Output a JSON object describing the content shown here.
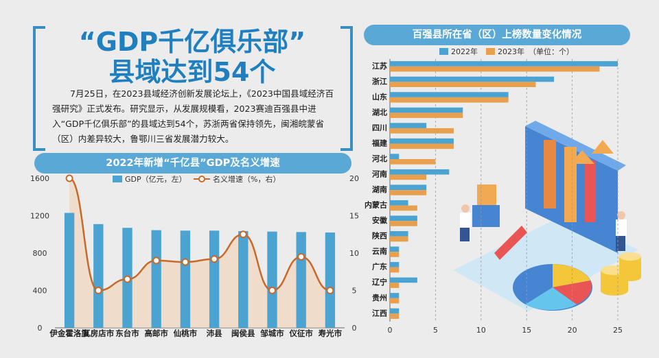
{
  "article": {
    "headline_line1": "“GDP千亿俱乐部”",
    "headline_line2": "县域达到54个",
    "lead": "7月25日，在2023县域经济创新发展论坛上，《2023中国县域经济百强研究》正式发布。研究显示，从发展规模看，2023赛迪百强县中进入“GDP千亿俱乐部”的县域达到54个，苏浙两省保持领先，闽湘皖蒙省（区）内差异较大，鲁鄂川三省发展潜力较大。"
  },
  "colors": {
    "accent": "#3a8fc2",
    "bar_gdp": "#4ba3d1",
    "line_growth": "#c8692a",
    "bar_2022": "#4ba3d1",
    "bar_2023": "#e8a04e"
  },
  "chart_data": [
    {
      "type": "bar",
      "title": "2022年新增“千亿县”GDP及名义增速",
      "categories": [
        "伊金霍洛旗",
        "瓦房店市",
        "东台市",
        "高邮市",
        "仙桃市",
        "沛县",
        "闽侯县",
        "邹城市",
        "仪征市",
        "寿光市"
      ],
      "series": [
        {
          "name": "GDP（亿元，左）",
          "type": "bar",
          "axis": "left",
          "values": [
            1230,
            1110,
            1070,
            1045,
            1040,
            1040,
            1035,
            1030,
            1025,
            1020
          ]
        },
        {
          "name": "名义增速（%，右）",
          "type": "line",
          "axis": "right",
          "values": [
            20.0,
            5.0,
            6.5,
            9.0,
            8.8,
            9.2,
            12.5,
            5.0,
            9.5,
            5.0
          ]
        }
      ],
      "y_left": {
        "range": [
          0,
          1600
        ],
        "ticks": [
          "0",
          "400",
          "800",
          "1200",
          "1600"
        ]
      },
      "y_right": {
        "range": [
          0,
          20
        ],
        "ticks": [
          "0",
          "5",
          "10",
          "15",
          "20"
        ]
      },
      "legend_position": "top-center",
      "grid": false
    },
    {
      "type": "bar",
      "orientation": "horizontal",
      "title": "百强县所在省（区）上榜数量变化情况",
      "categories": [
        "江苏",
        "浙江",
        "山东",
        "湖北",
        "四川",
        "福建",
        "河北",
        "河南",
        "湖南",
        "内蒙古",
        "安徽",
        "陕西",
        "云南",
        "广东",
        "辽宁",
        "贵州",
        "江西"
      ],
      "series": [
        {
          "name": "2022年",
          "values": [
            25,
            18,
            13,
            8,
            4,
            7,
            1,
            6.5,
            4,
            2,
            3,
            2,
            1,
            1,
            3,
            1,
            1
          ]
        },
        {
          "name": "2023年",
          "values": [
            23,
            16,
            13,
            8,
            7,
            7,
            5,
            4,
            4,
            3,
            3,
            2,
            1,
            1,
            1,
            1,
            1
          ]
        }
      ],
      "unit_note": "（单位：个）",
      "x_range": [
        0,
        25
      ],
      "x_ticks": [
        "0",
        "5",
        "10",
        "15",
        "20",
        "25"
      ],
      "legend_position": "top-left",
      "grid": true
    }
  ]
}
